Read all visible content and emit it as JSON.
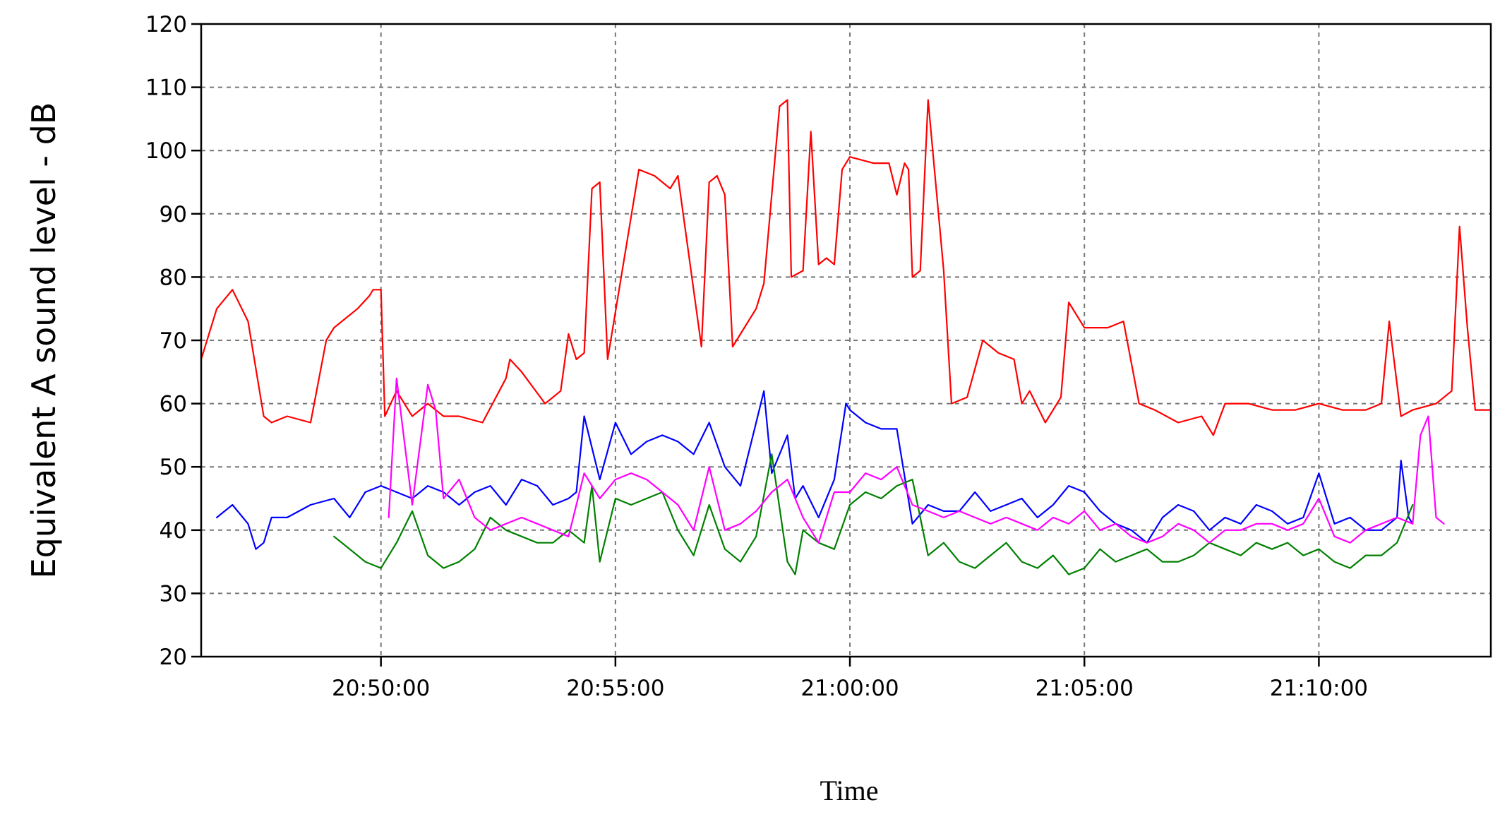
{
  "chart_data": {
    "type": "line",
    "title": "",
    "xlabel": "Time",
    "ylabel": "Equivalent A sound level - dB",
    "ylim": [
      20,
      120
    ],
    "yticks": [
      20,
      30,
      40,
      50,
      60,
      70,
      80,
      90,
      100,
      110,
      120
    ],
    "xlim": [
      "20:46:10",
      "21:13:40"
    ],
    "xticks": [
      "20:50:00",
      "20:55:00",
      "21:00:00",
      "21:05:00",
      "21:10:00"
    ],
    "grid": true,
    "legend": "none",
    "series": [
      {
        "color": "#ff0000",
        "x": [
          "20:46:10",
          "20:46:30",
          "20:46:50",
          "20:47:10",
          "20:47:30",
          "20:47:40",
          "20:48:00",
          "20:48:30",
          "20:48:50",
          "20:49:00",
          "20:49:30",
          "20:49:45",
          "20:49:50",
          "20:50:00",
          "20:50:05",
          "20:50:20",
          "20:50:40",
          "20:51:00",
          "20:51:20",
          "20:51:40",
          "20:52:10",
          "20:52:40",
          "20:52:45",
          "20:53:00",
          "20:53:30",
          "20:53:50",
          "20:54:00",
          "20:54:10",
          "20:54:20",
          "20:54:30",
          "20:54:40",
          "20:54:50",
          "20:55:30",
          "20:55:50",
          "20:56:10",
          "20:56:20",
          "20:56:50",
          "20:57:00",
          "20:57:10",
          "20:57:20",
          "20:57:30",
          "20:57:40",
          "20:58:00",
          "20:58:10",
          "20:58:30",
          "20:58:40",
          "20:58:45",
          "20:59:00",
          "20:59:10",
          "20:59:20",
          "20:59:30",
          "20:59:40",
          "20:59:50",
          "21:00:00",
          "21:00:30",
          "21:00:50",
          "21:01:00",
          "21:01:10",
          "21:01:15",
          "21:01:20",
          "21:01:30",
          "21:01:40",
          "21:02:00",
          "21:02:10",
          "21:02:30",
          "21:02:50",
          "21:03:10",
          "21:03:30",
          "21:03:40",
          "21:03:50",
          "21:04:10",
          "21:04:30",
          "21:04:40",
          "21:05:00",
          "21:05:30",
          "21:05:50",
          "21:06:10",
          "21:06:30",
          "21:07:00",
          "21:07:30",
          "21:07:45",
          "21:08:00",
          "21:08:30",
          "21:09:00",
          "21:09:30",
          "21:10:00",
          "21:10:30",
          "21:11:00",
          "21:11:20",
          "21:11:30",
          "21:11:45",
          "21:12:00",
          "21:12:30",
          "21:12:50",
          "21:13:00",
          "21:13:10",
          "21:13:20",
          "21:13:40"
        ],
        "y": [
          67,
          75,
          78,
          73,
          58,
          57,
          58,
          57,
          70,
          72,
          75,
          77,
          78,
          78,
          58,
          62,
          58,
          60,
          58,
          58,
          57,
          64,
          67,
          65,
          60,
          62,
          71,
          67,
          68,
          94,
          95,
          67,
          97,
          96,
          94,
          96,
          69,
          95,
          96,
          93,
          69,
          71,
          75,
          79,
          107,
          108,
          80,
          81,
          103,
          82,
          83,
          82,
          97,
          99,
          98,
          98,
          93,
          98,
          97,
          80,
          81,
          108,
          81,
          60,
          61,
          70,
          68,
          67,
          60,
          62,
          57,
          61,
          76,
          72,
          72,
          73,
          60,
          59,
          57,
          58,
          55,
          60,
          60,
          59,
          59,
          60,
          59,
          59,
          60,
          73,
          58,
          59,
          60,
          62,
          88,
          72,
          59,
          59
        ]
      },
      {
        "color": "#0000ff",
        "x": [
          "20:46:30",
          "20:46:50",
          "20:47:10",
          "20:47:20",
          "20:47:30",
          "20:47:40",
          "20:48:00",
          "20:48:30",
          "20:49:00",
          "20:49:20",
          "20:49:40",
          "20:50:00",
          "20:50:20",
          "20:50:40",
          "20:51:00",
          "20:51:20",
          "20:51:40",
          "20:52:00",
          "20:52:20",
          "20:52:40",
          "20:53:00",
          "20:53:20",
          "20:53:40",
          "20:54:00",
          "20:54:10",
          "20:54:20",
          "20:54:40",
          "20:55:00",
          "20:55:20",
          "20:55:40",
          "20:56:00",
          "20:56:20",
          "20:56:40",
          "20:57:00",
          "20:57:20",
          "20:57:40",
          "20:58:00",
          "20:58:10",
          "20:58:20",
          "20:58:40",
          "20:58:50",
          "20:59:00",
          "20:59:20",
          "20:59:40",
          "20:59:55",
          "21:00:00",
          "21:00:20",
          "21:00:40",
          "21:01:00",
          "21:01:20",
          "21:01:40",
          "21:02:00",
          "21:02:20",
          "21:02:40",
          "21:03:00",
          "21:03:20",
          "21:03:40",
          "21:04:00",
          "21:04:20",
          "21:04:40",
          "21:05:00",
          "21:05:20",
          "21:05:40",
          "21:06:00",
          "21:06:20",
          "21:06:40",
          "21:07:00",
          "21:07:20",
          "21:07:40",
          "21:08:00",
          "21:08:20",
          "21:08:40",
          "21:09:00",
          "21:09:20",
          "21:09:40",
          "21:10:00",
          "21:10:20",
          "21:10:40",
          "21:11:00",
          "21:11:20",
          "21:11:40",
          "21:11:45",
          "21:11:55",
          "21:12:00"
        ],
        "y": [
          42,
          44,
          41,
          37,
          38,
          42,
          42,
          44,
          45,
          42,
          46,
          47,
          46,
          45,
          47,
          46,
          44,
          46,
          47,
          44,
          48,
          47,
          44,
          45,
          46,
          58,
          48,
          57,
          52,
          54,
          55,
          54,
          52,
          57,
          50,
          47,
          57,
          62,
          49,
          55,
          45,
          47,
          42,
          48,
          60,
          59,
          57,
          56,
          56,
          41,
          44,
          43,
          43,
          46,
          43,
          44,
          45,
          42,
          44,
          47,
          46,
          43,
          41,
          40,
          38,
          42,
          44,
          43,
          40,
          42,
          41,
          44,
          43,
          41,
          42,
          49,
          41,
          42,
          40,
          40,
          42,
          51,
          42,
          41
        ]
      },
      {
        "color": "#008000",
        "x": [
          "20:49:00",
          "20:49:20",
          "20:49:40",
          "20:50:00",
          "20:50:20",
          "20:50:40",
          "20:51:00",
          "20:51:20",
          "20:51:40",
          "20:52:00",
          "20:52:20",
          "20:52:40",
          "20:53:00",
          "20:53:20",
          "20:53:40",
          "20:54:00",
          "20:54:20",
          "20:54:30",
          "20:54:40",
          "20:55:00",
          "20:55:20",
          "20:55:40",
          "20:56:00",
          "20:56:20",
          "20:56:40",
          "20:57:00",
          "20:57:20",
          "20:57:40",
          "20:58:00",
          "20:58:20",
          "20:58:40",
          "20:58:50",
          "20:59:00",
          "20:59:20",
          "20:59:40",
          "21:00:00",
          "21:00:20",
          "21:00:40",
          "21:01:00",
          "21:01:20",
          "21:01:40",
          "21:02:00",
          "21:02:20",
          "21:02:40",
          "21:03:00",
          "21:03:20",
          "21:03:40",
          "21:04:00",
          "21:04:20",
          "21:04:40",
          "21:05:00",
          "21:05:20",
          "21:05:40",
          "21:06:00",
          "21:06:20",
          "21:06:40",
          "21:07:00",
          "21:07:20",
          "21:07:40",
          "21:08:00",
          "21:08:20",
          "21:08:40",
          "21:09:00",
          "21:09:20",
          "21:09:40",
          "21:10:00",
          "21:10:20",
          "21:10:40",
          "21:11:00",
          "21:11:20",
          "21:11:40",
          "21:12:00"
        ],
        "y": [
          39,
          37,
          35,
          34,
          38,
          43,
          36,
          34,
          35,
          37,
          42,
          40,
          39,
          38,
          38,
          40,
          38,
          47,
          35,
          45,
          44,
          45,
          46,
          40,
          36,
          44,
          37,
          35,
          39,
          52,
          35,
          33,
          40,
          38,
          37,
          44,
          46,
          45,
          47,
          48,
          36,
          38,
          35,
          34,
          36,
          38,
          35,
          34,
          36,
          33,
          34,
          37,
          35,
          36,
          37,
          35,
          35,
          36,
          38,
          37,
          36,
          38,
          37,
          38,
          36,
          37,
          35,
          34,
          36,
          36,
          38,
          44
        ]
      },
      {
        "color": "#ff00ff",
        "x": [
          "20:50:10",
          "20:50:20",
          "20:50:40",
          "20:51:00",
          "20:51:10",
          "20:51:20",
          "20:51:40",
          "20:52:00",
          "20:52:20",
          "20:52:40",
          "20:53:00",
          "20:53:20",
          "20:53:40",
          "20:54:00",
          "20:54:20",
          "20:54:40",
          "20:55:00",
          "20:55:20",
          "20:55:40",
          "20:56:00",
          "20:56:20",
          "20:56:40",
          "20:57:00",
          "20:57:20",
          "20:57:40",
          "20:58:00",
          "20:58:20",
          "20:58:40",
          "20:59:00",
          "20:59:20",
          "20:59:40",
          "21:00:00",
          "21:00:20",
          "21:00:40",
          "21:01:00",
          "21:01:20",
          "21:01:40",
          "21:02:00",
          "21:02:20",
          "21:02:40",
          "21:03:00",
          "21:03:20",
          "21:03:40",
          "21:04:00",
          "21:04:20",
          "21:04:40",
          "21:05:00",
          "21:05:20",
          "21:05:40",
          "21:06:00",
          "21:06:20",
          "21:06:40",
          "21:07:00",
          "21:07:20",
          "21:07:40",
          "21:08:00",
          "21:08:20",
          "21:08:40",
          "21:09:00",
          "21:09:20",
          "21:09:40",
          "21:10:00",
          "21:10:20",
          "21:10:40",
          "21:11:00",
          "21:11:20",
          "21:11:40",
          "21:12:00",
          "21:12:10",
          "21:12:20",
          "21:12:30",
          "21:12:40"
        ],
        "y": [
          42,
          64,
          44,
          63,
          59,
          45,
          48,
          42,
          40,
          41,
          42,
          41,
          40,
          39,
          49,
          45,
          48,
          49,
          48,
          46,
          44,
          40,
          50,
          40,
          41,
          43,
          46,
          48,
          42,
          38,
          46,
          46,
          49,
          48,
          50,
          44,
          43,
          42,
          43,
          42,
          41,
          42,
          41,
          40,
          42,
          41,
          43,
          40,
          41,
          39,
          38,
          39,
          41,
          40,
          38,
          40,
          40,
          41,
          41,
          40,
          41,
          45,
          39,
          38,
          40,
          41,
          42,
          41,
          55,
          58,
          42,
          41
        ]
      }
    ]
  }
}
